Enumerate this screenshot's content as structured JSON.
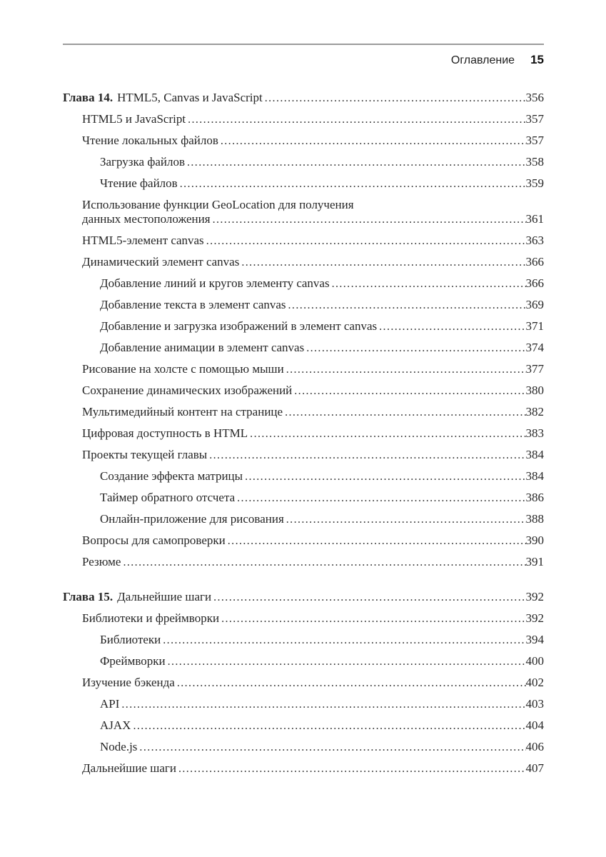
{
  "colors": {
    "background": "#ffffff",
    "text": "#262626",
    "rule": "#9c9c9c"
  },
  "header": {
    "title": "Оглавление",
    "page_number": "15"
  },
  "toc": {
    "entries": [
      {
        "level": 0,
        "prefix": "Глава 14.",
        "title": "HTML5, Canvas и JavaScript",
        "page": "356"
      },
      {
        "level": 1,
        "title": "HTML5 и JavaScript",
        "page": "357"
      },
      {
        "level": 1,
        "title": "Чтение локальных файлов",
        "page": "357"
      },
      {
        "level": 2,
        "title": "Загрузка файлов",
        "page": "358"
      },
      {
        "level": 2,
        "title": "Чтение файлов",
        "page": "359"
      },
      {
        "level": 1,
        "title": "Использование функции GeoLocation для получения",
        "title2": "данных местоположения",
        "page": "361"
      },
      {
        "level": 1,
        "title": "HTML5-элемент canvas",
        "page": "363"
      },
      {
        "level": 1,
        "title": "Динамический элемент canvas",
        "page": "366"
      },
      {
        "level": 2,
        "title": "Добавление линий и кругов элементу canvas",
        "page": "366"
      },
      {
        "level": 2,
        "title": "Добавление текста в элемент canvas",
        "page": "369"
      },
      {
        "level": 2,
        "title": "Добавление и загрузка изображений в элемент canvas",
        "page": "371"
      },
      {
        "level": 2,
        "title": "Добавление анимации в элемент canvas",
        "page": "374"
      },
      {
        "level": 1,
        "title": "Рисование на холсте с помощью мыши",
        "page": "377"
      },
      {
        "level": 1,
        "title": "Сохранение динамических изображений",
        "page": "380"
      },
      {
        "level": 1,
        "title": "Мультимедийный контент на странице",
        "page": "382"
      },
      {
        "level": 1,
        "title": "Цифровая доступность в HTML",
        "page": "383"
      },
      {
        "level": 1,
        "title": "Проекты текущей главы",
        "page": "384"
      },
      {
        "level": 2,
        "title": "Создание эффекта матрицы",
        "page": "384"
      },
      {
        "level": 2,
        "title": "Таймер обратного отсчета",
        "page": "386"
      },
      {
        "level": 2,
        "title": "Онлайн-приложение для рисования",
        "page": "388"
      },
      {
        "level": 1,
        "title": "Вопросы для самопроверки",
        "page": "390"
      },
      {
        "level": 1,
        "title": "Резюме",
        "page": "391"
      },
      {
        "level": 0,
        "prefix": "Глава 15.",
        "title": "Дальнейшие шаги",
        "page": "392",
        "gap_before": true
      },
      {
        "level": 1,
        "title": "Библиотеки и фреймворки",
        "page": "392"
      },
      {
        "level": 2,
        "title": "Библиотеки",
        "page": "394"
      },
      {
        "level": 2,
        "title": "Фреймворки",
        "page": "400"
      },
      {
        "level": 1,
        "title": "Изучение бэкенда",
        "page": "402"
      },
      {
        "level": 2,
        "title": "API",
        "page": "403"
      },
      {
        "level": 2,
        "title": "AJAX",
        "page": "404"
      },
      {
        "level": 2,
        "title": "Node.js",
        "page": "406"
      },
      {
        "level": 1,
        "title": "Дальнейшие шаги",
        "page": "407"
      }
    ]
  }
}
